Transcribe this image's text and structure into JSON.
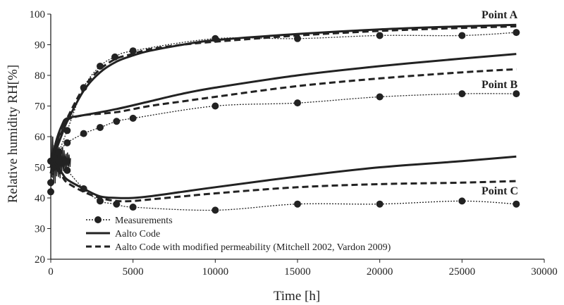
{
  "chart_data": {
    "type": "line",
    "xlabel": "Time [h]",
    "ylabel": "Relative humidity  RH[%]",
    "xlim": [
      0,
      30000
    ],
    "ylim": [
      20,
      100
    ],
    "x_ticks": [
      0,
      5000,
      10000,
      15000,
      20000,
      25000,
      30000
    ],
    "y_ticks": [
      20,
      30,
      40,
      50,
      60,
      70,
      80,
      90,
      100
    ],
    "x_tick_labels": [
      "0",
      "5000",
      "10000",
      "15000",
      "20000",
      "25000",
      "30000"
    ],
    "y_tick_labels": [
      "20",
      "30",
      "40",
      "50",
      "60",
      "70",
      "80",
      "90",
      "100"
    ],
    "grid": false,
    "legend": {
      "placement": "bottom-left",
      "entries": [
        {
          "label": "Measurements",
          "style": "dotted-with-markers"
        },
        {
          "label": "Aalto  Code",
          "style": "solid"
        },
        {
          "label": "Aalto  Code  with modified permeability (Mitchell 2002, Vardon 2009)",
          "style": "dashed"
        }
      ]
    },
    "annotations": [
      {
        "text": "Point A",
        "x": 27000,
        "y": 98
      },
      {
        "text": "Point B",
        "x": 27000,
        "y": 76
      },
      {
        "text": "Point C",
        "x": 27000,
        "y": 42
      }
    ],
    "series": [
      {
        "group": "A",
        "kind": "measurements",
        "x": [
          0,
          200,
          500,
          1000,
          2000,
          3000,
          3900,
          5000,
          10000,
          15000,
          20000,
          25000,
          28300
        ],
        "y": [
          45,
          50,
          55,
          62,
          76,
          83,
          86,
          88,
          92,
          92,
          93,
          93,
          94
        ]
      },
      {
        "group": "A",
        "kind": "aalto",
        "x": [
          0,
          300,
          700,
          1000,
          2000,
          3000,
          4000,
          5000,
          6000,
          8000,
          10000,
          15000,
          20000,
          25000,
          28300
        ],
        "y": [
          48,
          55,
          61,
          65,
          75,
          81,
          84.5,
          86.5,
          88,
          90,
          91.5,
          93.5,
          95,
          96,
          96.5
        ]
      },
      {
        "group": "A",
        "kind": "aalto_modified",
        "x": [
          0,
          300,
          700,
          1000,
          2000,
          3000,
          4000,
          5000,
          6000,
          8000,
          10000,
          15000,
          20000,
          25000,
          28300
        ],
        "y": [
          48,
          56,
          62,
          66,
          76,
          82,
          85.5,
          87,
          88.5,
          90,
          91,
          93,
          94.5,
          95.5,
          96
        ]
      },
      {
        "group": "B",
        "kind": "measurements",
        "x": [
          0,
          200,
          500,
          1000,
          2000,
          3000,
          4000,
          5000,
          10000,
          15000,
          20000,
          25000,
          28300
        ],
        "y": [
          52,
          53,
          55,
          58,
          61,
          63,
          65,
          66,
          70,
          71,
          73,
          74,
          74
        ]
      },
      {
        "group": "B",
        "kind": "aalto",
        "x": [
          0,
          300,
          700,
          1000,
          2000,
          4000,
          6000,
          8000,
          10000,
          15000,
          20000,
          25000,
          28300
        ],
        "y": [
          50,
          58,
          64,
          66,
          67,
          69,
          71.5,
          74,
          76,
          80,
          83,
          85.5,
          87
        ]
      },
      {
        "group": "B",
        "kind": "aalto_modified",
        "x": [
          0,
          300,
          700,
          1000,
          2000,
          4000,
          6000,
          8000,
          10000,
          15000,
          20000,
          25000,
          28300
        ],
        "y": [
          50,
          57,
          63,
          65.5,
          67,
          68,
          70,
          71.5,
          73,
          76.5,
          79,
          81,
          82
        ]
      },
      {
        "group": "C",
        "kind": "measurements",
        "x": [
          0,
          200,
          500,
          1000,
          2000,
          3000,
          4000,
          5000,
          10000,
          15000,
          20000,
          25000,
          28300
        ],
        "y": [
          42,
          50,
          52,
          49,
          43,
          39,
          38,
          37,
          36,
          38,
          38,
          39,
          38
        ]
      },
      {
        "group": "C",
        "kind": "aalto",
        "x": [
          0,
          300,
          700,
          1000,
          2000,
          3000,
          4000,
          5000,
          6000,
          8000,
          10000,
          15000,
          20000,
          25000,
          28300
        ],
        "y": [
          52,
          51,
          48,
          46,
          43,
          40.5,
          40,
          40,
          40.5,
          42,
          43.5,
          47,
          50,
          52,
          53.5
        ]
      },
      {
        "group": "C",
        "kind": "aalto_modified",
        "x": [
          0,
          300,
          700,
          1000,
          2000,
          3000,
          4000,
          5000,
          6000,
          8000,
          10000,
          15000,
          20000,
          25000,
          28300
        ],
        "y": [
          52,
          50,
          47,
          45,
          42,
          40,
          39,
          39,
          39.5,
          40.5,
          41.5,
          43.5,
          44.5,
          45,
          45.5
        ]
      }
    ]
  }
}
